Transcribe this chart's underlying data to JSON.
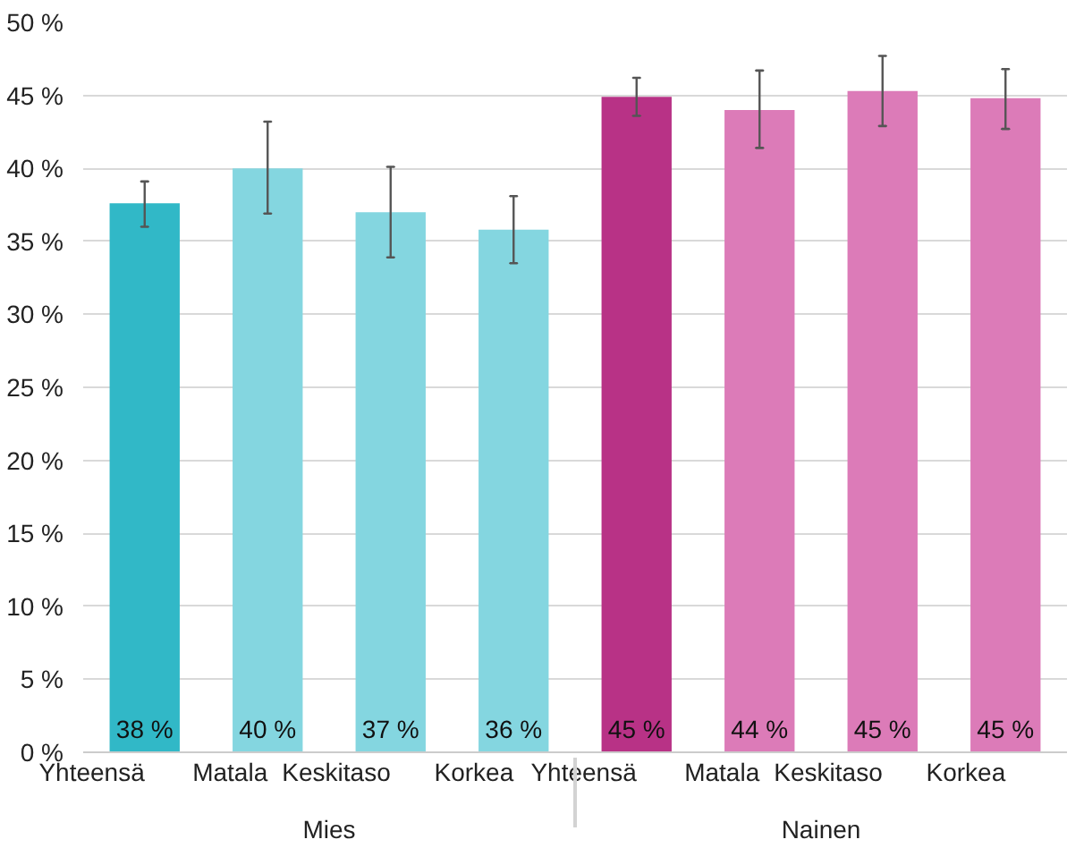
{
  "chart_data": {
    "type": "bar",
    "categories": [
      "Yhteensä",
      "Matala",
      "Keskitaso",
      "Korkea",
      "Yhteensä",
      "Matala",
      "Keskitaso",
      "Korkea"
    ],
    "series": [
      {
        "name": "Mies",
        "values": [
          37.6,
          40.0,
          37.0,
          35.8,
          null,
          null,
          null,
          null
        ],
        "colors": [
          "#31b8c7",
          "#84d6e0",
          "#84d6e0",
          "#84d6e0",
          null,
          null,
          null,
          null
        ],
        "errors": [
          [
            36.0,
            39.1
          ],
          [
            36.9,
            43.2
          ],
          [
            33.9,
            40.1
          ],
          [
            33.5,
            38.1
          ],
          null,
          null,
          null,
          null
        ],
        "value_labels": [
          "38 %",
          "40 %",
          "37 %",
          "36 %",
          null,
          null,
          null,
          null
        ]
      },
      {
        "name": "Nainen",
        "values": [
          null,
          null,
          null,
          null,
          44.9,
          44.0,
          45.3,
          44.8
        ],
        "colors": [
          null,
          null,
          null,
          null,
          "#b83286",
          "#dc7bb8",
          "#dc7bb8",
          "#dc7bb8"
        ],
        "errors": [
          null,
          null,
          null,
          null,
          [
            43.6,
            46.2
          ],
          [
            41.4,
            46.7
          ],
          [
            42.9,
            47.7
          ],
          [
            42.7,
            46.8
          ]
        ],
        "value_labels": [
          null,
          null,
          null,
          null,
          "45 %",
          "44 %",
          "45 %",
          "45 %"
        ]
      }
    ],
    "ylim": [
      0,
      50
    ],
    "yticks": [
      {
        "value": 0,
        "label": "0 %"
      },
      {
        "value": 5,
        "label": "5 %"
      },
      {
        "value": 10,
        "label": "10 %"
      },
      {
        "value": 15,
        "label": "15 %"
      },
      {
        "value": 20,
        "label": "20 %"
      },
      {
        "value": 25,
        "label": "25 %"
      },
      {
        "value": 30,
        "label": "30 %"
      },
      {
        "value": 35,
        "label": "35 %"
      },
      {
        "value": 40,
        "label": "40 %"
      },
      {
        "value": 45,
        "label": "45 %"
      },
      {
        "value": 50,
        "label": "50 %"
      }
    ],
    "grid": "y"
  }
}
